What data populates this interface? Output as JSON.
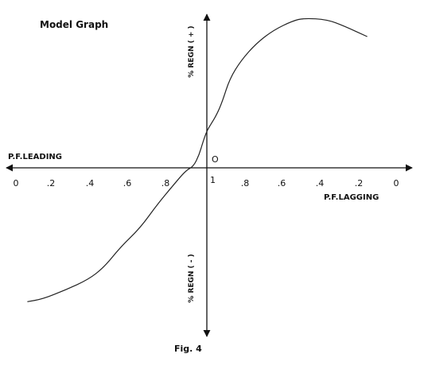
{
  "chart_data": {
    "type": "line",
    "title": "Model Graph",
    "caption": "Fig. 4",
    "xlabel_left": "P.F.LEADING",
    "xlabel_right": "P.F.LAGGING",
    "ylabel_top": "% REGN ( + )",
    "ylabel_bottom": "% REGN ( - )",
    "origin_label": "O",
    "center_tick": "1",
    "left_ticks": [
      "0",
      ".2",
      ".4",
      ".6",
      ".8"
    ],
    "right_ticks": [
      ".8",
      ".6",
      ".4",
      ".2",
      "0"
    ],
    "x_axis": "signed power factor offset from unity: negative = leading, positive = lagging",
    "x_range": [
      -1,
      1
    ],
    "y_range": [
      -1,
      1
    ],
    "grid": false,
    "series": [
      {
        "x": [
          -0.94,
          -0.86,
          -0.74,
          -0.62,
          -0.54,
          -0.45,
          -0.35,
          -0.26,
          -0.18,
          -0.11,
          -0.07,
          -0.04,
          -0.02,
          0.0,
          0.02,
          0.05,
          0.08,
          0.12,
          0.18,
          0.26,
          0.35,
          0.45,
          0.51,
          0.63,
          0.72,
          0.84
        ],
        "y": [
          -1.02,
          -1.0,
          -0.93,
          -0.85,
          -0.76,
          -0.6,
          -0.46,
          -0.28,
          -0.14,
          -0.02,
          0.01,
          0.1,
          0.2,
          0.28,
          0.33,
          0.4,
          0.5,
          0.68,
          0.82,
          0.95,
          1.05,
          1.12,
          1.14,
          1.13,
          1.08,
          1.0
        ]
      }
    ]
  }
}
